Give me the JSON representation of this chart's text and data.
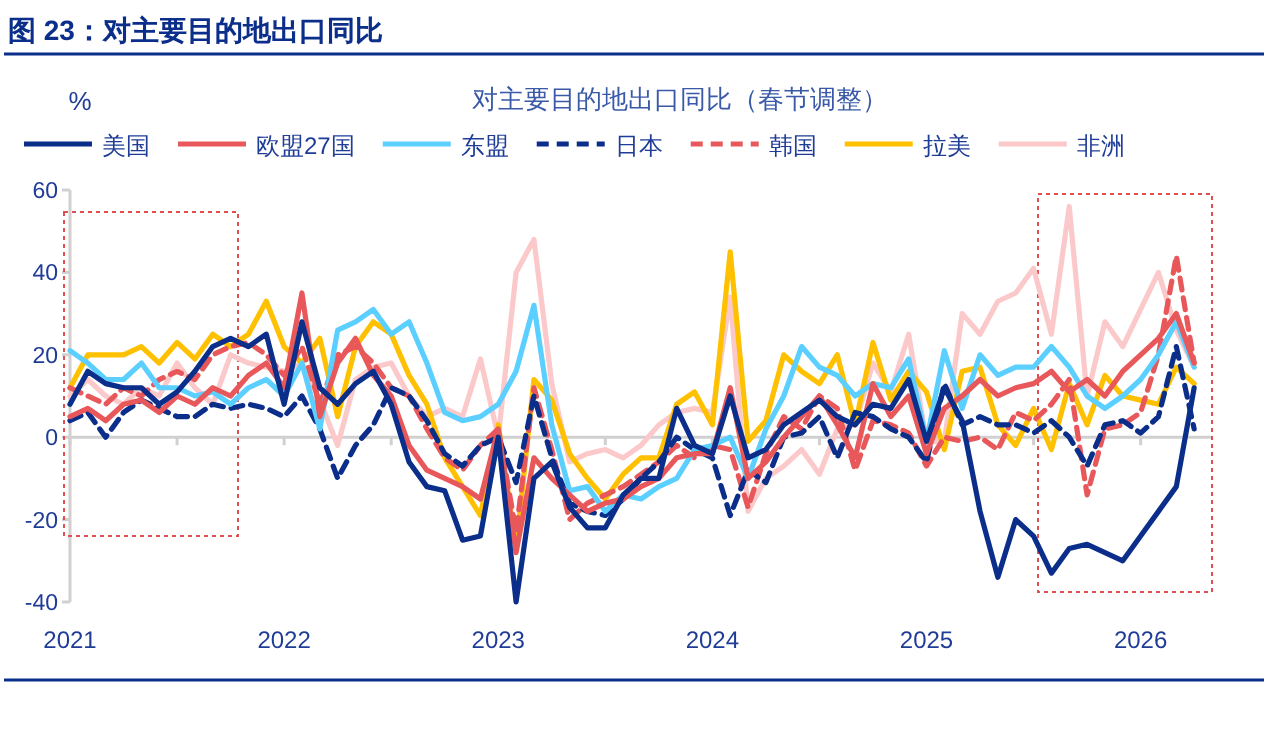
{
  "chart_data": {
    "type": "line",
    "title": "图 23：对主要目的地出口同比",
    "subtitle": "对主要目的地出口同比（春节调整）",
    "ylabel": "%",
    "x": [
      "2021-01",
      "2021-02",
      "2021-03",
      "2021-04",
      "2021-05",
      "2021-06",
      "2021-07",
      "2021-08",
      "2021-09",
      "2021-10",
      "2021-11",
      "2021-12",
      "2022-01",
      "2022-02",
      "2022-03",
      "2022-04",
      "2022-05",
      "2022-06",
      "2022-07",
      "2022-08",
      "2022-09",
      "2022-10",
      "2022-11",
      "2022-12",
      "2023-01",
      "2023-02",
      "2023-03",
      "2023-04",
      "2023-05",
      "2023-06",
      "2023-07",
      "2023-08",
      "2023-09",
      "2023-10",
      "2023-11",
      "2023-12",
      "2024-01",
      "2024-02",
      "2024-03",
      "2024-04",
      "2024-05",
      "2024-06",
      "2024-07",
      "2024-08",
      "2024-09",
      "2024-10",
      "2024-11",
      "2024-12",
      "2025-01",
      "2025-02",
      "2025-03",
      "2025-04",
      "2025-05",
      "2025-06",
      "2025-07",
      "2025-08",
      "2025-09",
      "2025-10",
      "2025-11",
      "2025-12",
      "2026-01",
      "2026-02",
      "2026-03",
      "2026-04"
    ],
    "xlim": [
      "2021-01",
      "2026-05"
    ],
    "xticks": [
      {
        "value": "2021-01",
        "label": "2021"
      },
      {
        "value": "2021-07",
        "label": null
      },
      {
        "value": "2022-01",
        "label": "2022"
      },
      {
        "value": "2022-07",
        "label": null
      },
      {
        "value": "2023-01",
        "label": "2023"
      },
      {
        "value": "2023-07",
        "label": null
      },
      {
        "value": "2024-01",
        "label": "2024"
      },
      {
        "value": "2024-07",
        "label": null
      },
      {
        "value": "2025-01",
        "label": "2025"
      },
      {
        "value": "2025-07",
        "label": null
      },
      {
        "value": "2026-01",
        "label": "2026"
      }
    ],
    "ylim": [
      -40,
      60
    ],
    "yticks": [
      -40,
      -20,
      0,
      20,
      40,
      60
    ],
    "legend": "top",
    "marker": "none",
    "series": [
      {
        "name": "美国",
        "color": "#0a2e8a",
        "line_style": "solid",
        "values": [
          8,
          16,
          13,
          12,
          12,
          8,
          11,
          16,
          22,
          24,
          22,
          25,
          8,
          28,
          12,
          8,
          13,
          16,
          8,
          -6,
          -12,
          -13,
          -25,
          -24,
          0,
          -40,
          -10,
          -6,
          -17,
          -22,
          -22,
          -14,
          -10,
          -10,
          7,
          -2,
          -4,
          10,
          -5,
          -3,
          3,
          6,
          9,
          5,
          3,
          8,
          7,
          14,
          -1,
          12,
          4,
          -18,
          -34,
          -20,
          -24,
          -33,
          -27,
          -26,
          -28,
          -30,
          -24,
          -18,
          -12,
          12
        ]
      },
      {
        "name": "欧盟27国",
        "color": "#e8585a",
        "line_style": "solid",
        "values": [
          5,
          7,
          4,
          8,
          9,
          6,
          10,
          8,
          12,
          10,
          15,
          18,
          12,
          35,
          5,
          18,
          24,
          15,
          10,
          -2,
          -8,
          -10,
          -12,
          -15,
          2,
          -28,
          -5,
          -10,
          -14,
          -18,
          -16,
          -15,
          -12,
          -10,
          -5,
          -4,
          -4,
          12,
          -10,
          -6,
          0,
          5,
          10,
          3,
          -5,
          13,
          5,
          10,
          -4,
          7,
          10,
          14,
          10,
          12,
          13,
          16,
          11,
          14,
          10,
          16,
          20,
          24,
          30,
          18
        ]
      },
      {
        "name": "东盟",
        "color": "#5bcfff",
        "line_style": "solid",
        "values": [
          21,
          18,
          14,
          14,
          18,
          12,
          12,
          10,
          11,
          8,
          12,
          14,
          10,
          18,
          2,
          26,
          28,
          31,
          25,
          28,
          18,
          6,
          4,
          5,
          8,
          16,
          32,
          3,
          -13,
          -12,
          -18,
          -14,
          -15,
          -12,
          -10,
          -3,
          -2,
          0,
          -10,
          2,
          10,
          22,
          17,
          15,
          10,
          13,
          12,
          19,
          -1,
          21,
          7,
          20,
          15,
          17,
          17,
          22,
          17,
          10,
          7,
          10,
          14,
          20,
          28,
          17
        ]
      },
      {
        "name": "日本",
        "color": "#0a2e8a",
        "line_style": "dashed",
        "values": [
          4,
          6,
          0,
          6,
          9,
          7,
          5,
          5,
          8,
          7,
          8,
          7,
          5,
          10,
          2,
          -10,
          -2,
          3,
          12,
          10,
          4,
          -4,
          -7,
          -2,
          0,
          -11,
          10,
          -5,
          -16,
          -18,
          -19,
          -15,
          -10,
          -6,
          0,
          -3,
          -5,
          -19,
          -8,
          -11,
          0,
          1,
          5,
          -5,
          6,
          5,
          2,
          0,
          -6,
          13,
          3,
          5,
          3,
          3,
          1,
          4,
          0,
          -7,
          3,
          4,
          1,
          5,
          22,
          2
        ]
      },
      {
        "name": "韩国",
        "color": "#e8585a",
        "line_style": "dashed",
        "values": [
          12,
          10,
          8,
          12,
          10,
          14,
          16,
          14,
          20,
          22,
          23,
          20,
          15,
          22,
          8,
          20,
          22,
          18,
          12,
          10,
          2,
          -5,
          -8,
          -2,
          2,
          -23,
          12,
          -3,
          -20,
          -16,
          -14,
          -12,
          -9,
          -6,
          -2,
          -5,
          -2,
          -3,
          -17,
          -4,
          5,
          2,
          10,
          7,
          -8,
          4,
          3,
          1,
          -7,
          0,
          -1,
          0,
          -3,
          6,
          4,
          8,
          14,
          -14,
          2,
          3,
          6,
          20,
          44,
          18
        ]
      },
      {
        "name": "拉美",
        "color": "#ffc000",
        "line_style": "solid",
        "values": [
          12,
          20,
          20,
          20,
          22,
          18,
          23,
          19,
          25,
          22,
          25,
          33,
          22,
          18,
          24,
          5,
          22,
          28,
          25,
          15,
          8,
          -5,
          -12,
          -19,
          3,
          -27,
          14,
          9,
          -4,
          -10,
          -15,
          -9,
          -5,
          -5,
          8,
          11,
          3,
          45,
          -1,
          4,
          20,
          16,
          13,
          20,
          3,
          23,
          9,
          16,
          11,
          -3,
          16,
          17,
          3,
          -2,
          7,
          -3,
          13,
          3,
          15,
          10,
          9,
          8,
          17,
          13
        ]
      },
      {
        "name": "非洲",
        "color": "#fcc9cb",
        "line_style": "solid",
        "values": [
          10,
          14,
          10,
          8,
          12,
          10,
          18,
          12,
          8,
          20,
          18,
          17,
          16,
          18,
          9,
          -2,
          14,
          17,
          18,
          10,
          5,
          7,
          5,
          19,
          0,
          40,
          48,
          13,
          -6,
          -4,
          -3,
          -5,
          -2,
          3,
          6,
          7,
          6,
          34,
          -18,
          -10,
          -7,
          -3,
          -9,
          2,
          3,
          18,
          11,
          25,
          -1,
          -1,
          30,
          25,
          33,
          35,
          41,
          25,
          56,
          10,
          28,
          22,
          31,
          40,
          26,
          17
        ]
      }
    ]
  }
}
